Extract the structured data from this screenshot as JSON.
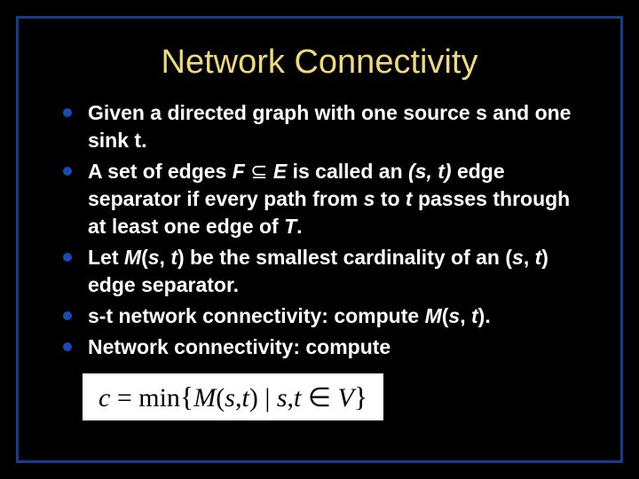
{
  "slide": {
    "title": "Network Connectivity",
    "background_color": "#000000",
    "border_color": "#1a3a8a",
    "title_color": "#efd97a",
    "text_color": "#ffffff",
    "bullet_color": "#1a4ab8",
    "title_fontsize": 38,
    "body_fontsize": 23,
    "bullets": [
      {
        "html": "Given a directed graph with one source s and one sink t."
      },
      {
        "html": "A set of edges <span class=\"italic\">F</span> <span class=\"subset\">⊆</span> <span class=\"italic\">E</span> is called an <span class=\"paren\">(s, t)</span> edge separator if every path from <span class=\"italic\">s</span> to <span class=\"italic\">t</span> passes through at least one edge of <span class=\"italic\">T</span>."
      },
      {
        "html": "Let <span class=\"italic\">M</span>(<span class=\"italic\">s</span>, <span class=\"italic\">t</span>) be the smallest cardinality of an (<span class=\"italic\">s</span>, <span class=\"italic\">t</span>) edge separator."
      },
      {
        "html": "s-t network connectivity: compute <span class=\"italic\">M</span>(<span class=\"italic\">s</span>, <span class=\"italic\">t</span>)."
      },
      {
        "html": "Network connectivity: compute"
      }
    ],
    "formula": {
      "display": "c = min{ M(s,t) | s,t ∈ V }",
      "box_bg": "#ffffff",
      "text_color": "#000000",
      "fontsize": 30
    }
  }
}
